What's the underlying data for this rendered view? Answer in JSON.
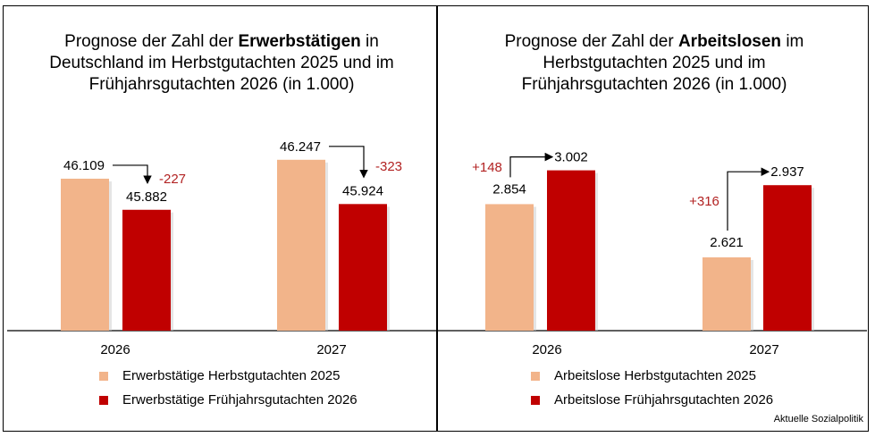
{
  "source": "Aktuelle Sozialpolitik",
  "colors": {
    "herbst": "#F2B48A",
    "fruehjahr": "#C00000",
    "delta": "#B22222"
  },
  "chart_data": [
    {
      "type": "bar",
      "title_parts": [
        "Prognose der Zahl der ",
        "Erwerbstätigen",
        " in",
        "Deutschland im Herbstgutachten 2025 und im",
        "Frühjahrsgutachten 2026 (in 1.000)"
      ],
      "categories": [
        "2026",
        "2027"
      ],
      "series": [
        {
          "name": "Erwerbstätige Herbstgutachten 2025",
          "values": [
            46109,
            46247
          ],
          "labels": [
            "46.109",
            "46.247"
          ]
        },
        {
          "name": "Erwerbstätige Frühjahrsgutachten 2026",
          "values": [
            45882,
            45924
          ],
          "labels": [
            "45.882",
            "45.924"
          ]
        }
      ],
      "deltas": [
        "-227",
        "-323"
      ],
      "ylim": [
        45000,
        46500
      ],
      "legend": "bottom"
    },
    {
      "type": "bar",
      "title_parts": [
        "Prognose der Zahl der ",
        "Arbeitslosen",
        " im",
        "Herbstgutachten 2025 und im",
        "Frühjahrsgutachten 2026 (in 1.000)"
      ],
      "categories": [
        "2026",
        "2027"
      ],
      "series": [
        {
          "name": "Arbeitslose Herbstgutachten 2025",
          "values": [
            2854,
            2621
          ],
          "labels": [
            "2.854",
            "2.621"
          ]
        },
        {
          "name": "Arbeitslose Frühjahrsgutachten 2026",
          "values": [
            3002,
            2937
          ],
          "labels": [
            "3.002",
            "2.937"
          ]
        }
      ],
      "deltas": [
        "+148",
        "+316"
      ],
      "ylim": [
        2300,
        3200
      ],
      "legend": "bottom"
    }
  ]
}
